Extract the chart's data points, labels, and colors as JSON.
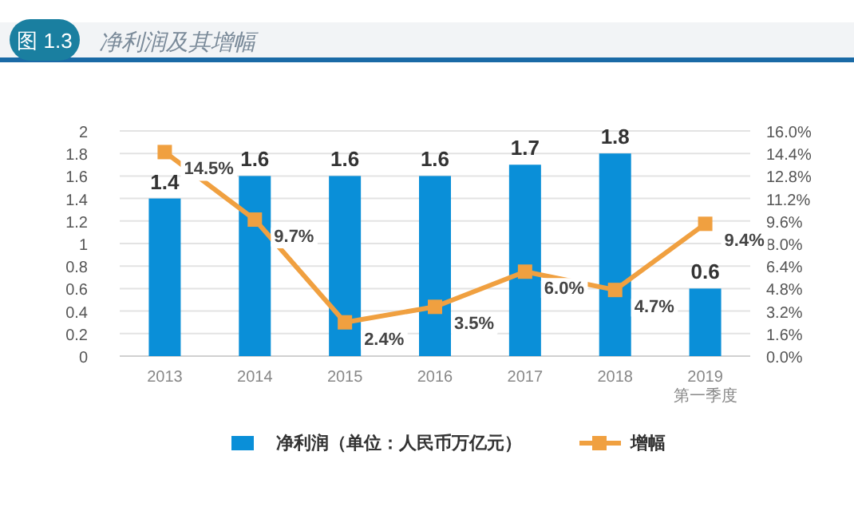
{
  "chart_data": {
    "type": "bar",
    "title": "净利润及其增幅",
    "annotations": [
      "图 1.3"
    ],
    "categories": [
      "2013",
      "2014",
      "2015",
      "2016",
      "2017",
      "2018",
      "2019\n第一季度"
    ],
    "series": [
      {
        "name": "净利润（单位：人民币万亿元）",
        "color": "#0a8fd8",
        "values": [
          1.4,
          1.6,
          1.6,
          1.6,
          1.7,
          1.8,
          0.6
        ]
      },
      {
        "name": "增幅",
        "type": "line",
        "axis": "y2",
        "color": "#f0a040",
        "marker": "square",
        "values": [
          14.5,
          9.7,
          2.4,
          3.5,
          6.0,
          4.7,
          9.4
        ],
        "value_labels": [
          "14.5%",
          "9.7%",
          "2.4%",
          "3.5%",
          "6.0%",
          "4.7%",
          "9.4%"
        ]
      }
    ],
    "data_labels": true,
    "ylim": [
      0,
      2
    ],
    "yticks": [
      0,
      0.2,
      0.4,
      0.6,
      0.8,
      1,
      1.2,
      1.4,
      1.6,
      1.8,
      2
    ],
    "y2lim": [
      0,
      16
    ],
    "y2ticks": [
      {
        "value": 0,
        "label": "0.0%"
      },
      {
        "value": 1.6,
        "label": "1.6%"
      },
      {
        "value": 3.2,
        "label": "3.2%"
      },
      {
        "value": 4.8,
        "label": "4.8%"
      },
      {
        "value": 6.4,
        "label": "6.4%"
      },
      {
        "value": 8,
        "label": "8.0%"
      },
      {
        "value": 9.6,
        "label": "9.6%"
      },
      {
        "value": 11.2,
        "label": "11.2%"
      },
      {
        "value": 12.8,
        "label": "12.8%"
      },
      {
        "value": 14.4,
        "label": "14.4%"
      },
      {
        "value": 16,
        "label": "16.0%"
      }
    ],
    "grid": "y",
    "legend": "bottom"
  }
}
